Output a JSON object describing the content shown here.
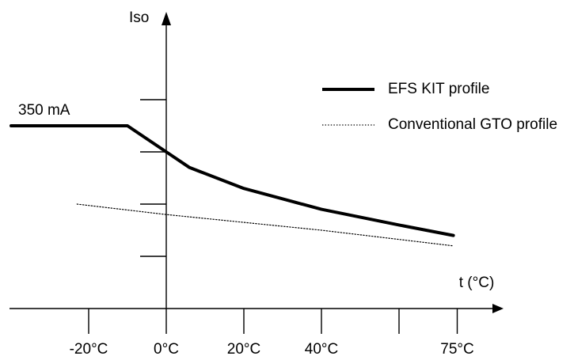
{
  "chart_data": {
    "type": "line",
    "ylabel": "Iso",
    "xlabel": "t (°C)",
    "xlim": [
      -30,
      80
    ],
    "ylim": [
      0,
      100
    ],
    "x_ticks": [
      {
        "value": -20,
        "label": "-20°C"
      },
      {
        "value": 0,
        "label": "0°C"
      },
      {
        "value": 20,
        "label": "20°C"
      },
      {
        "value": 40,
        "label": "40°C"
      },
      {
        "value": 60,
        "label": ""
      },
      {
        "value": 75,
        "label": "75°C"
      }
    ],
    "y_ticks": [
      20,
      40,
      60,
      80
    ],
    "annotation": {
      "text": "350 mA",
      "x": -40,
      "y": 70
    },
    "legend": {
      "placement": "top-right",
      "entries": [
        {
          "name": "EFS KIT profile",
          "style": "solid"
        },
        {
          "name": "Conventional GTO profile",
          "style": "dotted"
        }
      ]
    },
    "series": [
      {
        "name": "EFS KIT profile",
        "style": "solid",
        "color": "#000000",
        "points": [
          [
            -40,
            70
          ],
          [
            -10,
            70
          ],
          [
            0,
            60
          ],
          [
            6,
            54
          ],
          [
            20,
            46
          ],
          [
            40,
            38
          ],
          [
            60,
            32
          ],
          [
            74,
            28
          ]
        ]
      },
      {
        "name": "Conventional GTO profile",
        "style": "dotted",
        "color": "#000000",
        "points": [
          [
            -23,
            40
          ],
          [
            0,
            36
          ],
          [
            40,
            30
          ],
          [
            74,
            24
          ]
        ]
      }
    ]
  }
}
